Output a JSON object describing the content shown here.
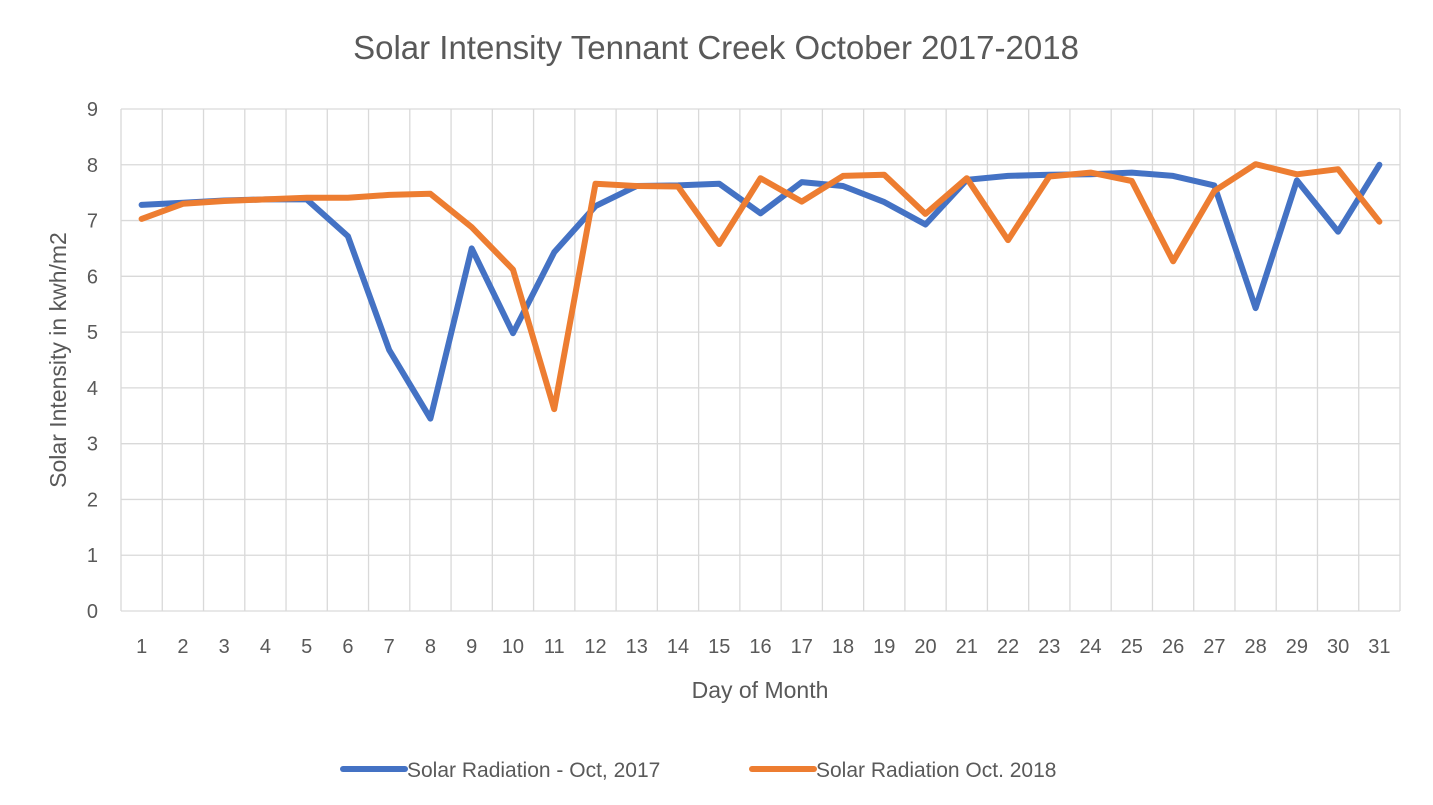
{
  "chart_data": {
    "type": "line",
    "title": "Solar Intensity Tennant Creek October 2017-2018",
    "xlabel": "Day of Month",
    "ylabel": "Solar Intensity in kwh/m2",
    "ylim": [
      0,
      9
    ],
    "yticks": [
      "0",
      "1",
      "2",
      "3",
      "4",
      "5",
      "6",
      "7",
      "8",
      "9"
    ],
    "categories": [
      "1",
      "2",
      "3",
      "4",
      "5",
      "6",
      "7",
      "8",
      "9",
      "10",
      "11",
      "12",
      "13",
      "14",
      "15",
      "16",
      "17",
      "18",
      "19",
      "20",
      "21",
      "22",
      "23",
      "24",
      "25",
      "26",
      "27",
      "28",
      "29",
      "30",
      "31"
    ],
    "grid": true,
    "legend_position": "bottom",
    "series": [
      {
        "name": "Solar Radiation - Oct, 2017",
        "color": "#4472c4",
        "values": [
          7.28,
          7.32,
          7.36,
          7.38,
          7.38,
          6.72,
          4.68,
          3.45,
          6.5,
          4.98,
          6.43,
          7.26,
          7.62,
          7.63,
          7.66,
          7.13,
          7.69,
          7.62,
          7.33,
          6.93,
          7.73,
          7.8,
          7.82,
          7.83,
          7.86,
          7.8,
          7.63,
          5.43,
          7.72,
          6.8,
          8.0
        ]
      },
      {
        "name": "Solar Radiation Oct. 2018",
        "color": "#ed7d31",
        "values": [
          7.03,
          7.3,
          7.35,
          7.38,
          7.41,
          7.41,
          7.46,
          7.48,
          6.88,
          6.12,
          3.62,
          7.66,
          7.62,
          7.61,
          6.58,
          7.76,
          7.34,
          7.8,
          7.82,
          7.12,
          7.76,
          6.65,
          7.79,
          7.86,
          7.71,
          6.27,
          7.53,
          8.01,
          7.83,
          7.92,
          6.98
        ]
      }
    ]
  }
}
